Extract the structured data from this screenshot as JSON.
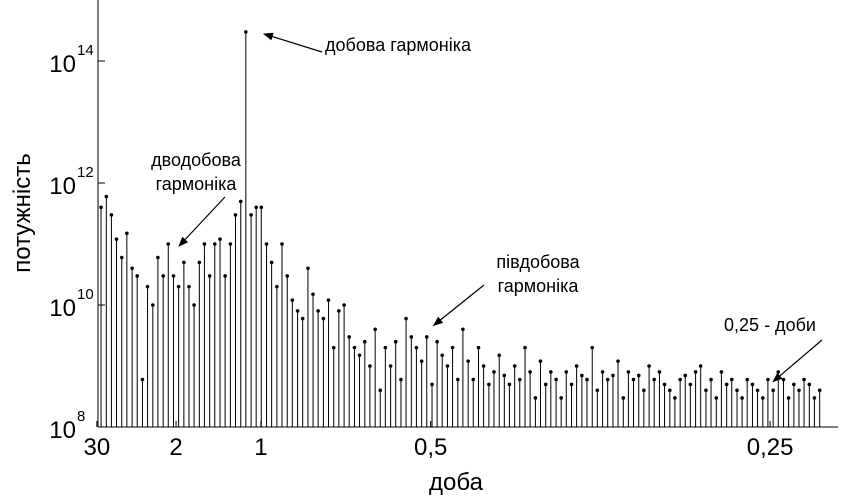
{
  "chart_data": {
    "type": "stem",
    "xlabel": "доба",
    "ylabel": "потужність",
    "y_scale": "log",
    "ylim": [
      100000000.0,
      1000000000000000.0
    ],
    "xlim": [
      0.04,
      4.4
    ],
    "x_axis_unit": "frequency (cycles per day), labelled by period in days",
    "grid": false,
    "x_ticks": [
      {
        "label": "30",
        "x": 0.0333
      },
      {
        "label": "2",
        "x": 0.5
      },
      {
        "label": "1",
        "x": 1.0
      },
      {
        "label": "0,5",
        "x": 2.0
      },
      {
        "label": "0,25",
        "x": 4.0
      }
    ],
    "y_ticks": [
      {
        "base": "10",
        "exp": "8",
        "value": 100000000.0
      },
      {
        "base": "10",
        "exp": "10",
        "value": 10000000000.0
      },
      {
        "base": "10",
        "exp": "12",
        "value": 1000000000000.0
      },
      {
        "base": "10",
        "exp": "14",
        "value": 100000000000000.0
      }
    ],
    "annotations": [
      {
        "lines": [
          "добова гармоніка"
        ],
        "x": 1.0,
        "y": 300000000000000.0
      },
      {
        "lines": [
          "дводобова",
          "гармоніка"
        ],
        "x": 0.5,
        "y": 100000000000.0
      },
      {
        "lines": [
          "півдобова",
          "гармоніка"
        ],
        "x": 2.0,
        "y": 5000000000.0
      },
      {
        "lines": [
          "0,25 - доби"
        ],
        "x": 4.0,
        "y": 600000000.0
      }
    ],
    "x": [
      0.058,
      0.089,
      0.119,
      0.149,
      0.18,
      0.21,
      0.241,
      0.271,
      0.302,
      0.332,
      0.363,
      0.393,
      0.424,
      0.454,
      0.485,
      0.515,
      0.546,
      0.576,
      0.606,
      0.637,
      0.667,
      0.698,
      0.728,
      0.759,
      0.789,
      0.82,
      0.85,
      0.881,
      0.911,
      0.942,
      0.972,
      1.002,
      1.033,
      1.063,
      1.094,
      1.124,
      1.155,
      1.185,
      1.216,
      1.246,
      1.277,
      1.307,
      1.337,
      1.368,
      1.398,
      1.429,
      1.459,
      1.49,
      1.52,
      1.551,
      1.581,
      1.612,
      1.642,
      1.673,
      1.703,
      1.733,
      1.764,
      1.794,
      1.825,
      1.855,
      1.886,
      1.916,
      1.947,
      1.977,
      2.008,
      2.038,
      2.068,
      2.099,
      2.129,
      2.16,
      2.19,
      2.221,
      2.251,
      2.282,
      2.312,
      2.343,
      2.373,
      2.404,
      2.434,
      2.464,
      2.495,
      2.525,
      2.556,
      2.586,
      2.617,
      2.647,
      2.678,
      2.708,
      2.739,
      2.769,
      2.799,
      2.83,
      2.86,
      2.891,
      2.921,
      2.952,
      2.982,
      3.013,
      3.043,
      3.074,
      3.104,
      3.135,
      3.165,
      3.195,
      3.226,
      3.256,
      3.287,
      3.317,
      3.348,
      3.378,
      3.409,
      3.439,
      3.47,
      3.5,
      3.53,
      3.561,
      3.591,
      3.622,
      3.652,
      3.683,
      3.713,
      3.744,
      3.774,
      3.805,
      3.835,
      3.865,
      3.896,
      3.926,
      3.957,
      3.987,
      4.018,
      4.048,
      4.079,
      4.109,
      4.14,
      4.17,
      4.2,
      4.231,
      4.261,
      4.292
    ],
    "y": [
      400000000000.0,
      600000000000.0,
      300000000000.0,
      120000000000.0,
      60000000000.0,
      150000000000.0,
      40000000000.0,
      30000000000.0,
      600000000.0,
      20000000000.0,
      10000000000.0,
      60000000000.0,
      30000000000.0,
      100000000000.0,
      30000000000.0,
      20000000000.0,
      50000000000.0,
      20000000000.0,
      10000000000.0,
      50000000000.0,
      100000000000.0,
      30000000000.0,
      100000000000.0,
      120000000000.0,
      30000000000.0,
      100000000000.0,
      300000000000.0,
      500000000000.0,
      300000000000000.0,
      300000000000.0,
      400000000000.0,
      400000000000.0,
      100000000000.0,
      50000000000.0,
      20000000000.0,
      100000000000.0,
      30000000000.0,
      12000000000.0,
      8000000000.0,
      6000000000.0,
      40000000000.0,
      15000000000.0,
      8000000000.0,
      6000000000.0,
      12000000000.0,
      2000000000.0,
      8000000000.0,
      10000000000.0,
      3000000000.0,
      2000000000.0,
      1500000000.0,
      2500000000.0,
      1000000000.0,
      4000000000.0,
      400000000.0,
      2000000000.0,
      1000000000.0,
      2500000000.0,
      600000000.0,
      6000000000.0,
      3000000000.0,
      2000000000.0,
      1200000000.0,
      3000000000.0,
      500000000.0,
      2500000000.0,
      1500000000.0,
      1000000000.0,
      2000000000.0,
      600000000.0,
      4000000000.0,
      1200000000.0,
      600000000.0,
      2000000000.0,
      1000000000.0,
      500000000.0,
      800000000.0,
      1500000000.0,
      700000000.0,
      500000000.0,
      1000000000.0,
      600000000.0,
      2000000000.0,
      800000000.0,
      300000000.0,
      1200000000.0,
      500000000.0,
      800000000.0,
      600000000.0,
      300000000.0,
      800000000.0,
      500000000.0,
      1000000000.0,
      700000000.0,
      600000000.0,
      2000000000.0,
      400000000.0,
      800000000.0,
      600000000.0,
      700000000.0,
      1200000000.0,
      300000000.0,
      800000000.0,
      600000000.0,
      700000000.0,
      400000000.0,
      1000000000.0,
      600000000.0,
      800000000.0,
      500000000.0,
      400000000.0,
      300000000.0,
      600000000.0,
      700000000.0,
      500000000.0,
      800000000.0,
      1000000000.0,
      400000000.0,
      600000000.0,
      300000000.0,
      800000000.0,
      500000000.0,
      600000000.0,
      400000000.0,
      300000000.0,
      600000000.0,
      500000000.0,
      400000000.0,
      300000000.0,
      600000000.0,
      400000000.0,
      800000000.0,
      600000000.0,
      300000000.0,
      500000000.0,
      400000000.0,
      600000000.0,
      500000000.0,
      300000000.0,
      400000000.0
    ]
  }
}
